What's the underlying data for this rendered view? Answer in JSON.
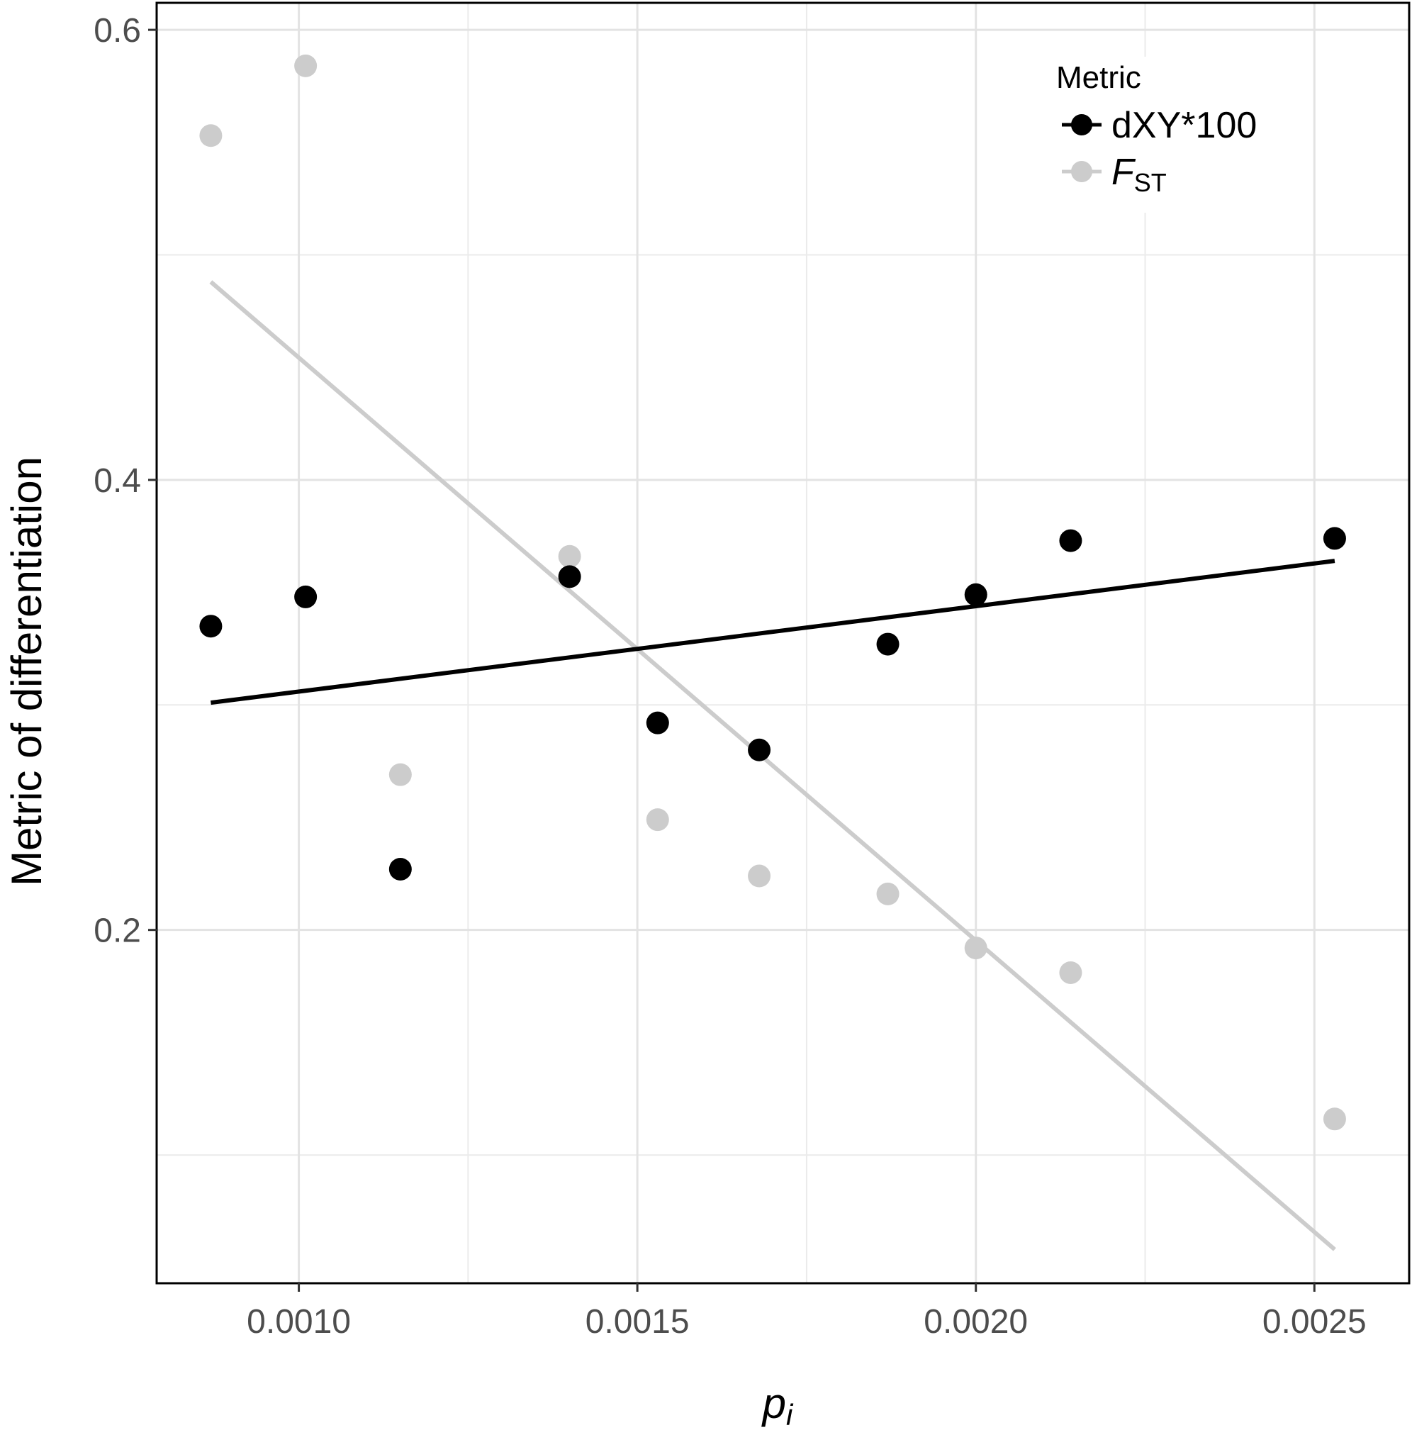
{
  "chart_data": {
    "type": "scatter",
    "xlabel": "p",
    "xlabel_sub": "i",
    "ylabel": "Metric of differentiation",
    "xlim": [
      0.00079,
      0.00264
    ],
    "ylim": [
      0.043,
      0.612
    ],
    "x_ticks": [
      0.001,
      0.0015,
      0.002,
      0.0025
    ],
    "x_tick_labels": [
      "0.0010",
      "0.0015",
      "0.0020",
      "0.0025"
    ],
    "x_minor": [
      0.00125,
      0.00175,
      0.00225
    ],
    "y_ticks": [
      0.2,
      0.4,
      0.6
    ],
    "y_tick_labels": [
      "0.2",
      "0.4",
      "0.6"
    ],
    "y_minor": [
      0.1,
      0.3,
      0.5
    ],
    "grid": true,
    "legend": {
      "title": "Metric",
      "position": "top-right",
      "entries": [
        {
          "label": "dXY*100",
          "italic": false
        },
        {
          "label": "F",
          "sub": "ST",
          "italic": true
        }
      ]
    },
    "series": [
      {
        "name": "dXY*100",
        "color": "#000000",
        "x": [
          0.00087,
          0.00101,
          0.00115,
          0.0014,
          0.00153,
          0.00168,
          0.00187,
          0.002,
          0.00214,
          0.00253
        ],
        "y": [
          0.335,
          0.348,
          0.227,
          0.357,
          0.292,
          0.28,
          0.327,
          0.349,
          0.373,
          0.374
        ],
        "trend": {
          "x": [
            0.00087,
            0.00253
          ],
          "y": [
            0.301,
            0.364
          ]
        }
      },
      {
        "name": "F_ST",
        "color": "#cccccc",
        "x": [
          0.00087,
          0.00101,
          0.00115,
          0.0014,
          0.00153,
          0.00168,
          0.00187,
          0.002,
          0.00214,
          0.00253
        ],
        "y": [
          0.553,
          0.584,
          0.269,
          0.366,
          0.249,
          0.224,
          0.216,
          0.192,
          0.181,
          0.116
        ],
        "trend": {
          "x": [
            0.00087,
            0.00253
          ],
          "y": [
            0.488,
            0.058
          ]
        }
      }
    ]
  }
}
